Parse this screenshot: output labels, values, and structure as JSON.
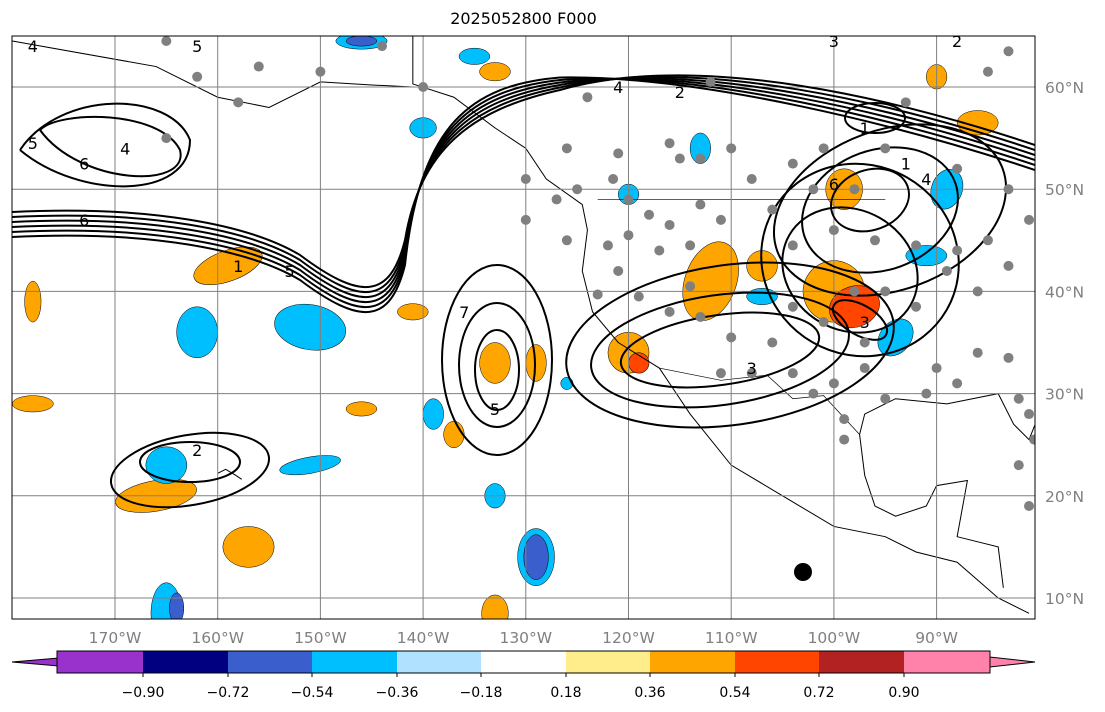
{
  "title": "2025052800 F000",
  "map": {
    "lon_range": [
      -180,
      -80.4
    ],
    "lat_range": [
      8,
      65
    ],
    "lon_ticks": [
      "170°W",
      "160°W",
      "150°W",
      "140°W",
      "130°W",
      "120°W",
      "110°W",
      "100°W",
      "90°W"
    ],
    "lon_tick_values": [
      -170,
      -160,
      -150,
      -140,
      -130,
      -120,
      -110,
      -100,
      -90
    ],
    "lat_ticks": [
      "60°N",
      "50°N",
      "40°N",
      "30°N",
      "20°N",
      "10°N"
    ],
    "lat_tick_values": [
      60,
      50,
      40,
      30,
      20,
      10
    ],
    "contour_labels": [
      {
        "text": "4",
        "lon": -178,
        "lat": 64
      },
      {
        "text": "5",
        "lon": -162,
        "lat": 64
      },
      {
        "text": "5",
        "lon": -178,
        "lat": 54.5
      },
      {
        "text": "6",
        "lon": -173,
        "lat": 52.5
      },
      {
        "text": "4",
        "lon": -169,
        "lat": 54
      },
      {
        "text": "6",
        "lon": -173,
        "lat": 47
      },
      {
        "text": "1",
        "lon": -158,
        "lat": 42.5
      },
      {
        "text": "5",
        "lon": -153,
        "lat": 42
      },
      {
        "text": "4",
        "lon": -121,
        "lat": 60
      },
      {
        "text": "2",
        "lon": -115,
        "lat": 59.5
      },
      {
        "text": "3",
        "lon": -100,
        "lat": 64.5
      },
      {
        "text": "2",
        "lon": -88,
        "lat": 64.5
      },
      {
        "text": "1",
        "lon": -97,
        "lat": 56
      },
      {
        "text": "1",
        "lon": -93,
        "lat": 52.5
      },
      {
        "text": "4",
        "lon": -91,
        "lat": 51
      },
      {
        "text": "6",
        "lon": -100,
        "lat": 50.5
      },
      {
        "text": "3",
        "lon": -97,
        "lat": 37
      },
      {
        "text": "3",
        "lon": -108,
        "lat": 32.5
      },
      {
        "text": "7",
        "lon": -136,
        "lat": 38
      },
      {
        "text": "5",
        "lon": -133,
        "lat": 28.5
      },
      {
        "text": "2",
        "lon": -162,
        "lat": 24.5
      }
    ],
    "colors": {
      "land_line": "#000000",
      "grid": "#808080",
      "obs_dot": "#808080",
      "marker": "#000000"
    }
  },
  "colorbar": {
    "ticks": [
      "−0.90",
      "−0.72",
      "−0.54",
      "−0.36",
      "−0.18",
      "0.18",
      "0.36",
      "0.54",
      "0.72",
      "0.90"
    ],
    "colors": [
      "#9932CC",
      "#000080",
      "#3A5FCD",
      "#00BFFF",
      "#B0E2FF",
      "#FFFFFF",
      "#FFEC8B",
      "#FFA500",
      "#FF4500",
      "#B22222",
      "#FF82AB"
    ]
  }
}
